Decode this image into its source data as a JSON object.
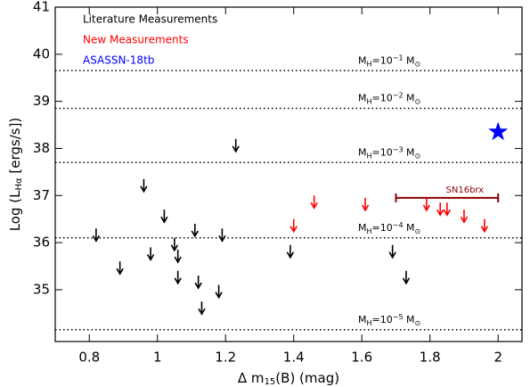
{
  "chart_data": {
    "type": "scatter",
    "ylabel_parts": [
      "Log (L",
      "Hα",
      " [ergs/s])"
    ],
    "xlabel_parts": [
      "Δ m",
      "15",
      "(B) (mag)"
    ],
    "xlim": [
      0.7,
      2.07
    ],
    "xticks": [
      0.8,
      1.0,
      1.2,
      1.4,
      1.6,
      1.8,
      2.0
    ],
    "ylim": [
      33.9,
      41
    ],
    "yticks": [
      35,
      36,
      37,
      38,
      39,
      40,
      41
    ],
    "series": [
      {
        "name": "Literature Measurements",
        "color": "#000000",
        "marker": "arrow",
        "x": [
          0.82,
          0.89,
          0.96,
          0.98,
          1.02,
          1.05,
          1.06,
          1.06,
          1.11,
          1.12,
          1.13,
          1.19,
          1.18,
          1.23,
          1.39,
          1.69,
          1.73
        ],
        "values": [
          36.3,
          35.6,
          37.35,
          35.9,
          36.7,
          36.1,
          35.85,
          35.4,
          36.4,
          35.3,
          34.75,
          36.3,
          35.1,
          38.2,
          35.95,
          35.95,
          35.4
        ]
      },
      {
        "name": "New Measurements",
        "color": "#ff0000",
        "marker": "arrow",
        "x": [
          1.4,
          1.46,
          1.61,
          1.79,
          1.83,
          1.85,
          1.9,
          1.96
        ],
        "values": [
          36.5,
          37.0,
          36.95,
          36.95,
          36.85,
          36.85,
          36.7,
          36.5
        ]
      },
      {
        "name": "ASASSN-18tb",
        "color": "#0000ff",
        "marker": "star",
        "x": [
          2.0
        ],
        "values": [
          38.35
        ]
      }
    ],
    "range_bar": {
      "label": "SN16brx",
      "x": [
        1.7,
        2.0
      ],
      "y": 36.95,
      "color": "#8b0000"
    },
    "mass_lines": [
      {
        "y": 39.65,
        "label": [
          "M",
          "H",
          "=10",
          "−1",
          " M",
          "⊙"
        ]
      },
      {
        "y": 38.85,
        "label": [
          "M",
          "H",
          "=10",
          "−2",
          " M",
          "⊙"
        ]
      },
      {
        "y": 37.7,
        "label": [
          "M",
          "H",
          "=10",
          "−3",
          " M",
          "⊙"
        ]
      },
      {
        "y": 36.1,
        "label": [
          "M",
          "H",
          "=10",
          "−4",
          " M",
          "⊙"
        ]
      },
      {
        "y": 34.15,
        "label": [
          "M",
          "H",
          "=10",
          "−5",
          " M",
          "⊙"
        ]
      }
    ]
  }
}
